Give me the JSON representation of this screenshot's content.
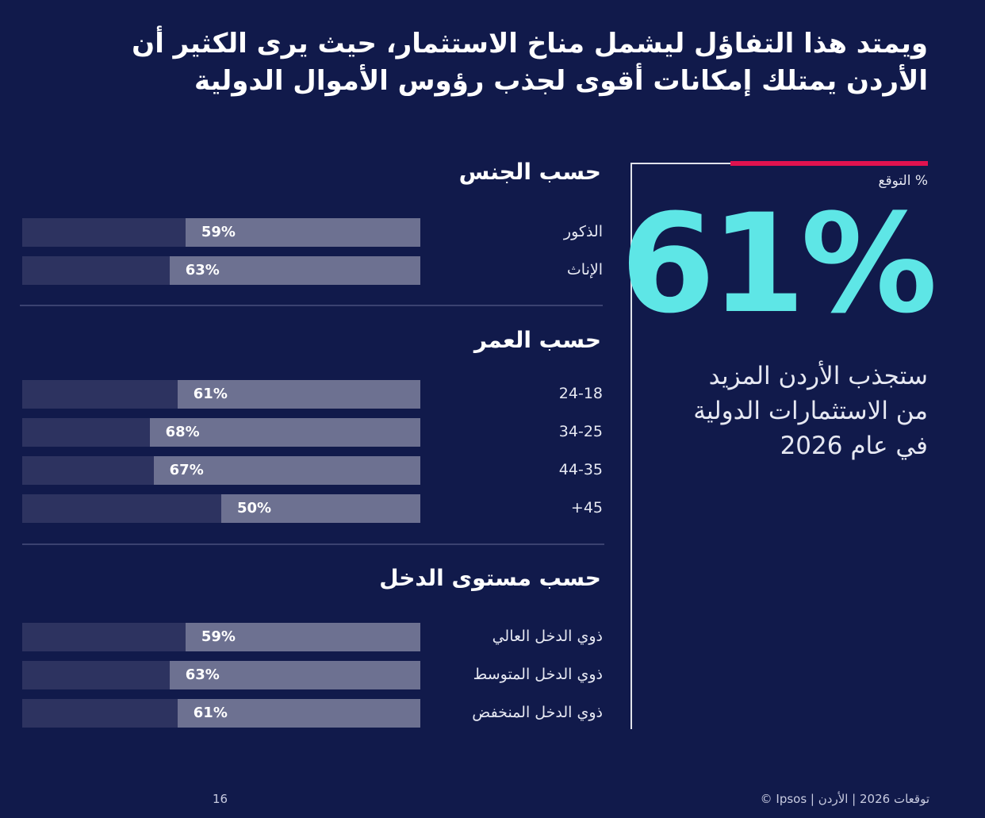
{
  "title": "ويمتد هذا التفاؤل ليشمل مناخ الاستثمار، حيث يرى الكثير أن الأردن يمتلك إمكانات أقوى لجذب رؤوس الأموال الدولية",
  "kpi": {
    "label": "% التوقع",
    "value": "61%",
    "description": "ستجذب الأردن المزيد من الاستثمارات الدولية في عام 2026"
  },
  "colors": {
    "background": "#111a4b",
    "track": "#2d3360",
    "fill": "#6d7191",
    "accent_cyan": "#5ee6e6",
    "accent_red": "#e0124f"
  },
  "chart_data": [
    {
      "type": "bar",
      "title": "حسب الجنس",
      "categories": [
        "الذكور",
        "الإناث"
      ],
      "values": [
        59,
        63
      ],
      "value_labels": [
        "59%",
        "63%"
      ],
      "xlim": [
        0,
        100
      ]
    },
    {
      "type": "bar",
      "title": "حسب العمر",
      "categories": [
        "24-18",
        "34-25",
        "44-35",
        "45+"
      ],
      "values": [
        61,
        68,
        67,
        50
      ],
      "value_labels": [
        "61%",
        "68%",
        "67%",
        "50%"
      ],
      "xlim": [
        0,
        100
      ]
    },
    {
      "type": "bar",
      "title": "حسب مستوى الدخل",
      "categories": [
        "ذوي الدخل العالي",
        "ذوي الدخل المتوسط",
        "ذوي الدخل المنخفض"
      ],
      "values": [
        59,
        63,
        61
      ],
      "value_labels": [
        "59%",
        "63%",
        "61%"
      ],
      "xlim": [
        0,
        100
      ]
    }
  ],
  "footer": {
    "page_number": "16",
    "credit": "© Ipsos | توقعات 2026 | الأردن"
  }
}
